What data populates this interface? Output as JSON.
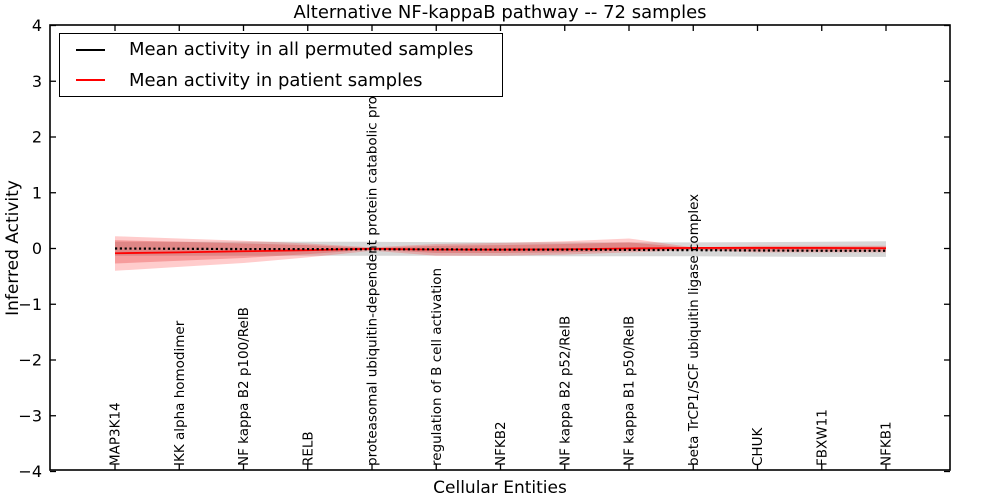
{
  "chart_data": {
    "type": "line",
    "title": "Alternative NF-kappaB pathway -- 72 samples",
    "xlabel": "Cellular Entities",
    "ylabel": "Inferred Activity",
    "ylim": [
      -4,
      4
    ],
    "yticks": [
      "4",
      "3",
      "2",
      "1",
      "0",
      "−1",
      "−2",
      "−3",
      "−4"
    ],
    "grid": false,
    "legend_position": "upper left",
    "categories": [
      "MAP3K14",
      "IKK alpha homodimer",
      "NF kappa B2 p100/RelB",
      "RELB",
      "proteasomal ubiquitin-dependent protein catabolic pro",
      "regulation of B cell activation",
      "NFKB2",
      "NF kappa B2 p52/RelB",
      "NF kappa B1 p50/RelB",
      "beta TrCP1/SCF ubiquitin ligase complex",
      "CHUK",
      "FBXW11",
      "NFKB1"
    ],
    "series": [
      {
        "name": "Mean activity in all permuted samples",
        "color": "#000000",
        "style": "dashed",
        "values": [
          0.0,
          -0.005,
          -0.01,
          -0.01,
          -0.015,
          -0.015,
          -0.02,
          -0.02,
          -0.025,
          -0.03,
          -0.035,
          -0.04,
          -0.04
        ]
      },
      {
        "name": "Mean activity in patient samples",
        "color": "#ff0000",
        "style": "solid",
        "values": [
          -0.085,
          -0.07,
          -0.05,
          -0.03,
          -0.005,
          -0.02,
          -0.02,
          -0.015,
          0.0,
          0.01,
          0.01,
          0.01,
          0.005
        ]
      }
    ],
    "bands": [
      {
        "name": "permuted-samples-range",
        "color": "#8c8c8c",
        "opacity": 0.35,
        "upper": [
          0.12,
          0.12,
          0.12,
          0.12,
          0.12,
          0.115,
          0.11,
          0.11,
          0.11,
          0.11,
          0.115,
          0.12,
          0.13
        ],
        "lower": [
          -0.13,
          -0.13,
          -0.13,
          -0.13,
          -0.13,
          -0.13,
          -0.135,
          -0.14,
          -0.14,
          -0.14,
          -0.145,
          -0.15,
          -0.15
        ]
      },
      {
        "name": "patient-samples-range-outer",
        "color": "#ff0000",
        "opacity": 0.2,
        "upper": [
          0.22,
          0.18,
          0.14,
          0.09,
          0.02,
          0.08,
          0.1,
          0.13,
          0.18,
          0.02,
          0.05,
          0.05,
          0.05
        ],
        "lower": [
          -0.4,
          -0.33,
          -0.26,
          -0.16,
          -0.04,
          -0.13,
          -0.13,
          -0.11,
          -0.07,
          -0.03,
          -0.07,
          -0.07,
          -0.07
        ]
      },
      {
        "name": "patient-samples-range-inner",
        "color": "#e03030",
        "opacity": 0.3,
        "upper": [
          0.15,
          0.12,
          0.09,
          0.06,
          0.01,
          0.05,
          0.06,
          0.08,
          0.11,
          0.01,
          0.03,
          0.03,
          0.03
        ],
        "lower": [
          -0.27,
          -0.22,
          -0.17,
          -0.1,
          -0.02,
          -0.08,
          -0.08,
          -0.07,
          -0.04,
          -0.02,
          -0.04,
          -0.04,
          -0.04
        ]
      }
    ]
  }
}
